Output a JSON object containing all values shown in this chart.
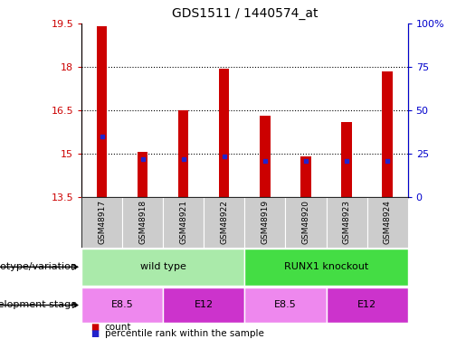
{
  "title": "GDS1511 / 1440574_at",
  "samples": [
    "GSM48917",
    "GSM48918",
    "GSM48921",
    "GSM48922",
    "GSM48919",
    "GSM48920",
    "GSM48923",
    "GSM48924"
  ],
  "count_values": [
    19.4,
    15.05,
    16.5,
    17.95,
    16.3,
    14.9,
    16.1,
    17.85
  ],
  "percentile_values": [
    15.6,
    14.8,
    14.8,
    14.9,
    14.75,
    14.75,
    14.75,
    14.75
  ],
  "bar_bottom": 13.5,
  "ylim_left": [
    13.5,
    19.5
  ],
  "ylim_right": [
    0,
    100
  ],
  "yticks_left": [
    13.5,
    15.0,
    16.5,
    18.0,
    19.5
  ],
  "ytick_labels_left": [
    "13.5",
    "15",
    "16.5",
    "18",
    "19.5"
  ],
  "yticks_right": [
    0,
    25,
    50,
    75,
    100
  ],
  "ytick_labels_right": [
    "0",
    "25",
    "50",
    "75",
    "100%"
  ],
  "grid_lines": [
    15.0,
    16.5,
    18.0
  ],
  "bar_color": "#cc0000",
  "percentile_color": "#2222cc",
  "sample_bg_color": "#cccccc",
  "genotype_groups": [
    {
      "label": "wild type",
      "start": 0,
      "end": 4,
      "color": "#aaeaaa"
    },
    {
      "label": "RUNX1 knockout",
      "start": 4,
      "end": 8,
      "color": "#44dd44"
    }
  ],
  "development_groups": [
    {
      "label": "E8.5",
      "start": 0,
      "end": 2,
      "color": "#ee88ee"
    },
    {
      "label": "E12",
      "start": 2,
      "end": 4,
      "color": "#cc33cc"
    },
    {
      "label": "E8.5",
      "start": 4,
      "end": 6,
      "color": "#ee88ee"
    },
    {
      "label": "E12",
      "start": 6,
      "end": 8,
      "color": "#cc33cc"
    }
  ],
  "legend_count_color": "#cc0000",
  "legend_pct_color": "#2222cc",
  "genotype_label": "genotype/variation",
  "development_label": "development stage",
  "count_label": "count",
  "pct_label": "percentile rank within the sample",
  "bar_width": 0.25,
  "left_tick_color": "#cc0000",
  "right_tick_color": "#0000cc"
}
